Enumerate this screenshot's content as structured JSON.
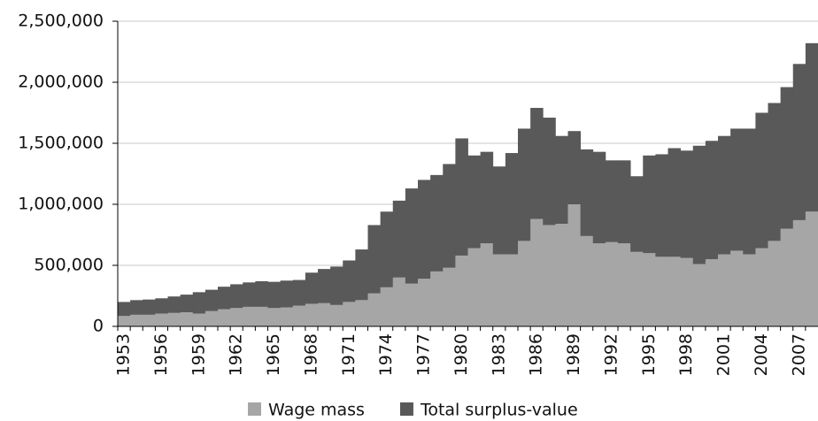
{
  "chart_data": {
    "type": "stacked_bar",
    "categories": [
      "1953",
      null,
      null,
      "1956",
      null,
      null,
      "1959",
      null,
      null,
      "1962",
      null,
      null,
      "1965",
      null,
      null,
      "1968",
      null,
      null,
      "1971",
      null,
      null,
      "1974",
      null,
      null,
      "1977",
      null,
      null,
      "1980",
      null,
      null,
      "1983",
      null,
      null,
      "1986",
      null,
      null,
      "1989",
      null,
      null,
      "1992",
      null,
      null,
      "1995",
      null,
      null,
      "1998",
      null,
      null,
      "2001",
      null,
      null,
      "2004",
      null,
      null,
      "2007",
      null
    ],
    "series": [
      {
        "name": "Wage mass",
        "color": "#a6a6a6",
        "values": [
          85000,
          95000,
          95000,
          105000,
          110000,
          115000,
          105000,
          125000,
          140000,
          150000,
          160000,
          160000,
          150000,
          155000,
          170000,
          185000,
          190000,
          175000,
          200000,
          215000,
          270000,
          320000,
          400000,
          350000,
          390000,
          450000,
          480000,
          580000,
          640000,
          680000,
          590000,
          590000,
          700000,
          880000,
          830000,
          840000,
          1000000,
          740000,
          680000,
          690000,
          680000,
          610000,
          600000,
          570000,
          570000,
          560000,
          510000,
          550000,
          590000,
          620000,
          590000,
          640000,
          700000,
          800000,
          870000,
          940000
        ]
      },
      {
        "name": "Total surplus-value",
        "color": "#595959",
        "values": [
          115000,
          120000,
          125000,
          125000,
          135000,
          145000,
          175000,
          175000,
          185000,
          195000,
          200000,
          210000,
          215000,
          220000,
          210000,
          255000,
          280000,
          315000,
          340000,
          415000,
          560000,
          620000,
          630000,
          780000,
          810000,
          790000,
          850000,
          960000,
          760000,
          750000,
          720000,
          830000,
          920000,
          910000,
          880000,
          720000,
          600000,
          710000,
          750000,
          670000,
          680000,
          620000,
          800000,
          840000,
          890000,
          880000,
          970000,
          970000,
          970000,
          1000000,
          1030000,
          1110000,
          1130000,
          1160000,
          1280000,
          1380000
        ]
      }
    ],
    "ylim": [
      0,
      2500000
    ],
    "yticks": [
      0,
      {
        "value": 500000,
        "label": "500,000"
      },
      {
        "value": 1000000,
        "label": "1,000,000"
      },
      {
        "value": 1500000,
        "label": "1,500,000"
      },
      {
        "value": 2000000,
        "label": "2,000,000"
      },
      {
        "value": 2500000,
        "label": "2,500,000"
      }
    ],
    "grid": true
  }
}
